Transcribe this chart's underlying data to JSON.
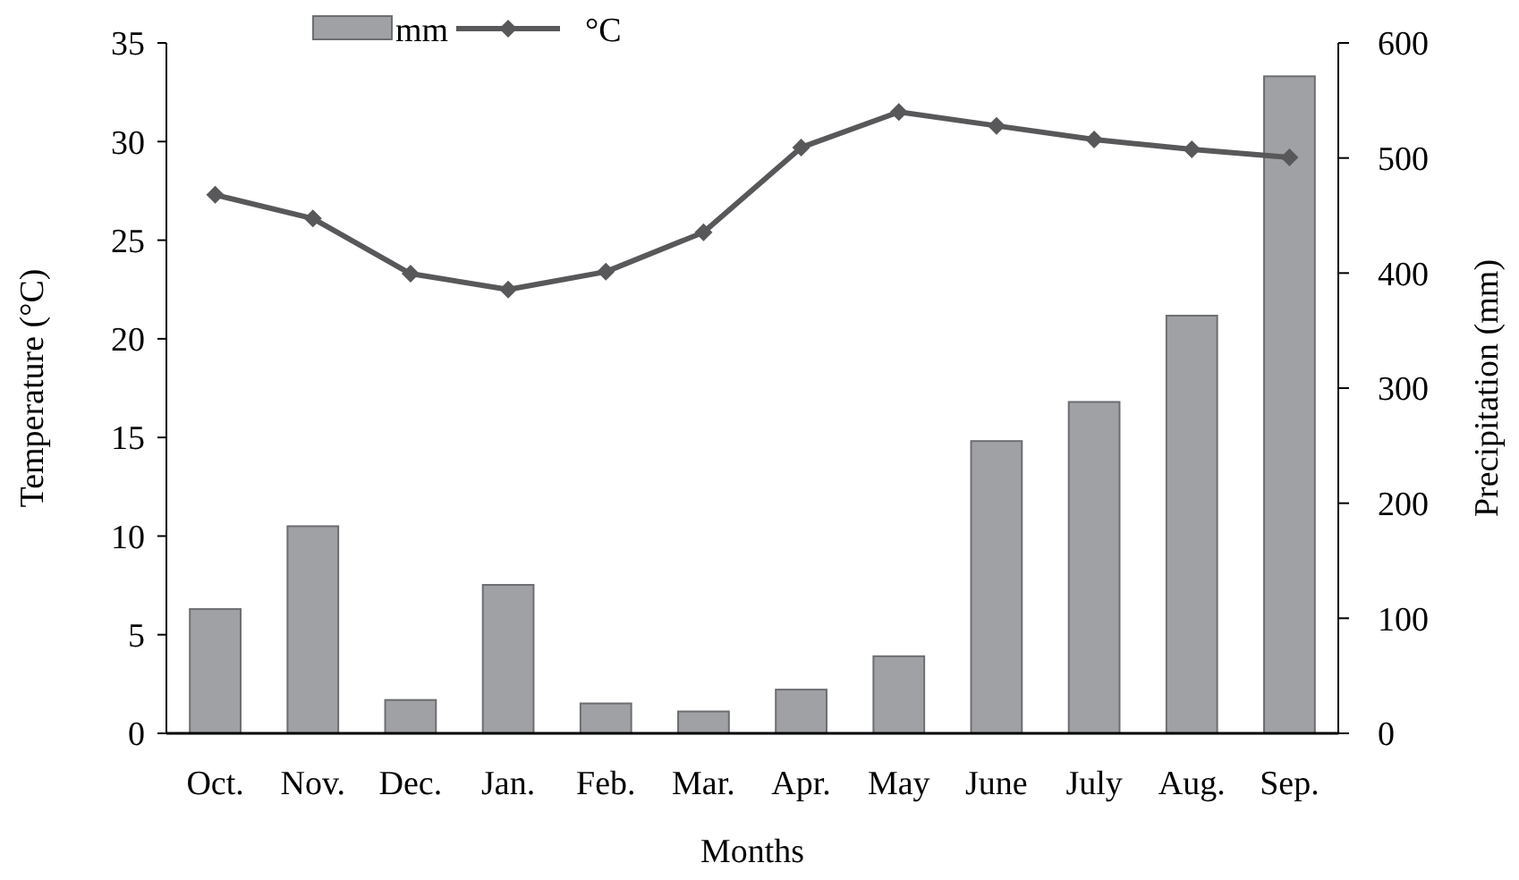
{
  "chart_data": {
    "type": "bar",
    "xlabel": "Months",
    "ylabel": "Temperature (°C)",
    "y2label": "Precipitation (mm)",
    "categories": [
      "Oct.",
      "Nov.",
      "Dec.",
      "Jan.",
      "Feb.",
      "Mar.",
      "Apr.",
      "May",
      "June",
      "July",
      "Aug.",
      "Sep."
    ],
    "series": [
      {
        "name": "mm",
        "axis": "y2",
        "color": "#a0a1a5",
        "values": [
          108,
          180,
          29,
          129,
          26,
          19,
          38,
          67,
          254,
          288,
          363,
          571
        ]
      },
      {
        "name": "°C",
        "type": "line",
        "color": "#58585a",
        "values": [
          27.3,
          26.1,
          23.3,
          22.5,
          23.4,
          25.4,
          29.7,
          31.5,
          30.8,
          30.1,
          29.6,
          29.2
        ]
      }
    ],
    "ylim": [
      0,
      35
    ],
    "yticks": [
      0,
      5,
      10,
      15,
      20,
      25,
      30,
      35
    ],
    "y2lim": [
      0,
      600
    ],
    "y2ticks": [
      0,
      100,
      200,
      300,
      400,
      500,
      600
    ],
    "legend": "top left",
    "marker": "diamond",
    "line_style": "solid",
    "grid": false
  }
}
